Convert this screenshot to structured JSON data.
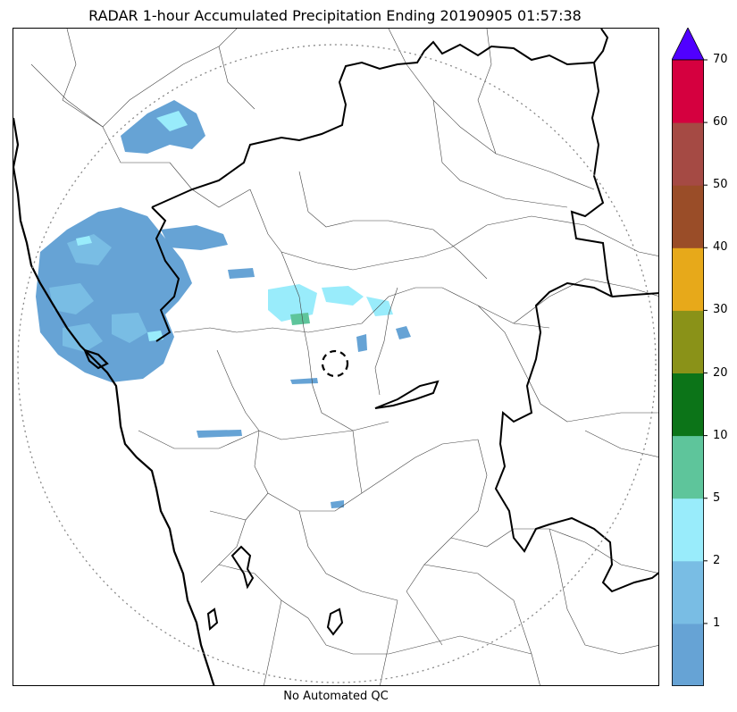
{
  "title": "RADAR 1-hour Accumulated Precipitation Ending 20190905 01:57:38",
  "footer": "No Automated QC",
  "colorbar": {
    "labels": [
      "1",
      "2",
      "5",
      "10",
      "20",
      "30",
      "40",
      "50",
      "60",
      "70"
    ],
    "colors": [
      "#66a3d5",
      "#79bde4",
      "#99ecfb",
      "#5ec59b",
      "#0c7418",
      "#8a9218",
      "#e7a91a",
      "#9a4d28",
      "#a54a44",
      "#d5003f"
    ],
    "extend_color": "#5000ff"
  },
  "map_colors": {
    "coast": "#000000",
    "state_border": "#000000",
    "district_border": "#444444",
    "range_ring": "#888888"
  }
}
